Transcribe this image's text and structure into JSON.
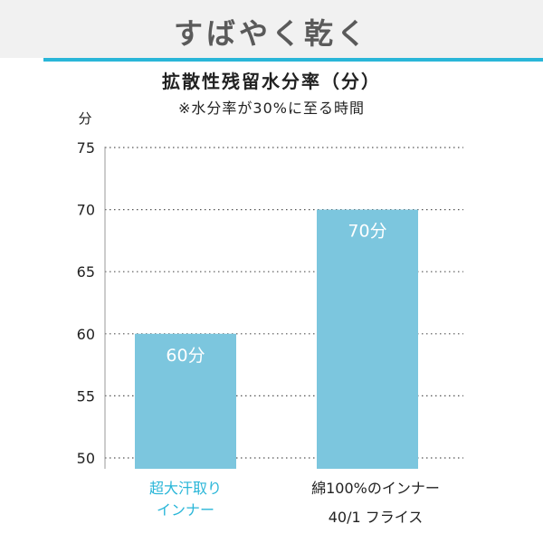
{
  "header": {
    "title": "すばやく乾く"
  },
  "chart_data": {
    "type": "bar",
    "title": "拡散性残留水分率（分）",
    "subtitle": "※水分率が30%に至る時間",
    "ylabel": "分",
    "ylim": [
      50,
      75
    ],
    "yticks": [
      75,
      70,
      65,
      60,
      55,
      50
    ],
    "grid": true,
    "categories": [
      [
        "超大汗取り",
        "インナー"
      ],
      [
        "綿100%のインナー",
        "40/1 フライス"
      ]
    ],
    "values": [
      60,
      70
    ],
    "data_labels": [
      "60分",
      "70分"
    ],
    "colors": {
      "bar": "#7cc6de",
      "highlight_text": "#29b6d8",
      "accent_rule": "#29b6d8"
    }
  }
}
